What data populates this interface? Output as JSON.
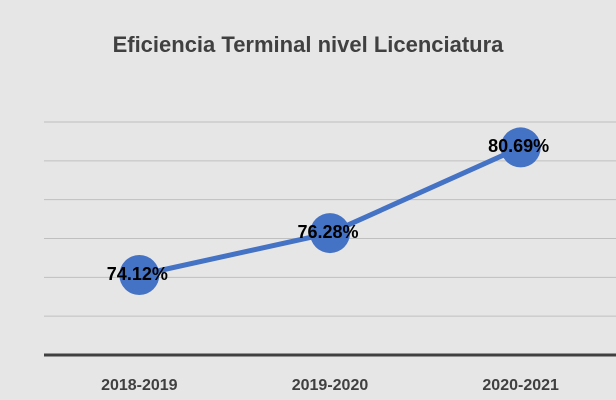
{
  "chart_data": {
    "type": "line",
    "title": "Eficiencia Terminal nivel Licenciatura",
    "categories": [
      "2018-2019",
      "2019-2020",
      "2020-2021"
    ],
    "values": [
      74.12,
      76.28,
      80.69
    ],
    "value_labels": [
      "74.12%",
      "76.28%",
      "80.69%"
    ],
    "color": "#4472c4",
    "ylim": [
      70,
      82
    ],
    "yticks": [
      70,
      72,
      74,
      76,
      78,
      80,
      82
    ],
    "grid": true
  }
}
